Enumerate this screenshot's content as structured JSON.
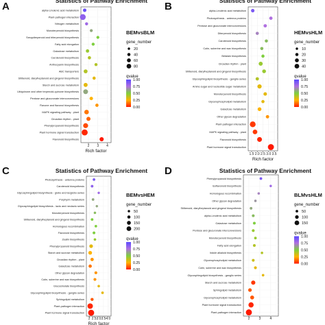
{
  "chart_data": [
    {
      "type": "scatter",
      "panel_letter": "A",
      "title": "Statistics of Pathway Enrichment",
      "comparison": "BEMvsBLM",
      "xlabel": "Rich factor",
      "xticks": [
        "2",
        "3",
        "4"
      ],
      "xlim": [
        1.2,
        4.4
      ],
      "legend_size_title": "gene_number",
      "legend_sizes": [
        "20",
        "40",
        "60",
        "80"
      ],
      "legend_color_title": "qvalue",
      "legend_color_ticks": [
        "1.00",
        "0.75",
        "0.50",
        "0.25",
        "0.00"
      ],
      "pathways": [
        "alpha-Linolenic acid metabolism",
        "Plant-pathogen interaction",
        "Nitrogen metabolism",
        "Monoterpenoid biosynthesis",
        "Sesquiterpenoid and triterpenoid biosynthesis",
        "Fatty acid elongation",
        "Galactose metabolism",
        "Carotenoid biosynthesis",
        "Anthocyanin biosynthesis",
        "ABC transporters",
        "Stilbenoid, diarylheptanoid and gingerol biosynthesis",
        "Starch and sucrose metabolism",
        "Ubiquinone and other terpenoid-quinone biosynthesis",
        "Pentose and glucuronate interconversions",
        "Flavone and flavonol biosynthesis",
        "MAPK signaling pathway - plant",
        "Circadian rhythm - plant",
        "Phenylpropanoid biosynthesis",
        "Plant hormone signal transduction",
        "Flavonoid biosynthesis"
      ],
      "points": [
        {
          "x": 1.6,
          "size": 10,
          "q": 0.95
        },
        {
          "x": 1.4,
          "size": 55,
          "q": 0.85
        },
        {
          "x": 1.8,
          "size": 6,
          "q": 0.8
        },
        {
          "x": 2.3,
          "size": 5,
          "q": 0.6
        },
        {
          "x": 3.0,
          "size": 5,
          "q": 0.5
        },
        {
          "x": 2.5,
          "size": 6,
          "q": 0.5
        },
        {
          "x": 1.9,
          "size": 9,
          "q": 0.45
        },
        {
          "x": 2.1,
          "size": 8,
          "q": 0.4
        },
        {
          "x": 2.8,
          "size": 6,
          "q": 0.4
        },
        {
          "x": 1.7,
          "size": 16,
          "q": 0.4
        },
        {
          "x": 2.6,
          "size": 7,
          "q": 0.3
        },
        {
          "x": 1.7,
          "size": 18,
          "q": 0.3
        },
        {
          "x": 1.7,
          "size": 30,
          "q": 0.6
        },
        {
          "x": 2.3,
          "size": 10,
          "q": 0.25
        },
        {
          "x": 2.9,
          "size": 8,
          "q": 0.2
        },
        {
          "x": 1.8,
          "size": 26,
          "q": 0.15
        },
        {
          "x": 2.0,
          "size": 18,
          "q": 0.12
        },
        {
          "x": 1.7,
          "size": 34,
          "q": 0.08
        },
        {
          "x": 1.6,
          "size": 60,
          "q": 0.02
        },
        {
          "x": 3.4,
          "size": 20,
          "q": 0.0
        }
      ]
    },
    {
      "type": "scatter",
      "panel_letter": "B",
      "title": "Statistics of Pathway Enrichment",
      "comparison": "HEMvsHLM",
      "xlabel": "Rich factor",
      "xticks": [
        "1.5",
        "2.0",
        "2.5",
        "3.0",
        "3.5"
      ],
      "xlim": [
        1.2,
        3.8
      ],
      "legend_size_title": "gene_number",
      "legend_sizes": [
        "10",
        "20",
        "30",
        "40"
      ],
      "legend_color_title": "qvalue",
      "legend_color_ticks": [
        "1.00",
        "0.75",
        "0.50",
        "0.25",
        "0.00"
      ],
      "pathways": [
        "alpha-Linolenic acid metabolism",
        "Photosynthesis - antenna proteins",
        "Pentose and glucuronate interconversions",
        "Diterpenoid biosynthesis",
        "Carotenoid biosynthesis",
        "Cutin, suberine and wax biosynthesis",
        "Betalain biosynthesis",
        "Circadian rhythm - plant",
        "Stilbenoid, diarylheptanoid and gingerol biosynthesis",
        "Glycosphingolipid biosynthesis - ganglio series",
        "Amino sugar and nucleotide sugar metabolism",
        "Monoterpenoid biosynthesis",
        "Glycerophospholipid metabolism",
        "Galactose metabolism",
        "Other glycan degradation",
        "Plant-pathogen interaction",
        "MAPK signaling pathway - plant",
        "Flavonoid biosynthesis",
        "Plant hormone signal transduction"
      ],
      "points": [
        {
          "x": 1.6,
          "size": 6,
          "q": 0.9
        },
        {
          "x": 3.2,
          "size": 5,
          "q": 0.75
        },
        {
          "x": 2.7,
          "size": 5,
          "q": 0.75
        },
        {
          "x": 2.0,
          "size": 4,
          "q": 0.7
        },
        {
          "x": 2.8,
          "size": 4,
          "q": 0.55
        },
        {
          "x": 2.4,
          "size": 4,
          "q": 0.55
        },
        {
          "x": 2.5,
          "size": 4,
          "q": 0.5
        },
        {
          "x": 2.3,
          "size": 10,
          "q": 0.45
        },
        {
          "x": 2.6,
          "size": 8,
          "q": 0.45
        },
        {
          "x": 2.0,
          "size": 5,
          "q": 0.4
        },
        {
          "x": 2.2,
          "size": 12,
          "q": 0.3
        },
        {
          "x": 2.7,
          "size": 6,
          "q": 0.3
        },
        {
          "x": 2.5,
          "size": 4,
          "q": 0.3
        },
        {
          "x": 2.2,
          "size": 8,
          "q": 0.25
        },
        {
          "x": 2.9,
          "size": 5,
          "q": 0.2
        },
        {
          "x": 1.6,
          "size": 30,
          "q": 0.05
        },
        {
          "x": 1.8,
          "size": 16,
          "q": 0.05
        },
        {
          "x": 2.2,
          "size": 18,
          "q": 0.02
        },
        {
          "x": 3.2,
          "size": 34,
          "q": 0.0
        }
      ]
    },
    {
      "type": "scatter",
      "panel_letter": "C",
      "title": "Statistics of Pathway Enrichment",
      "comparison": "BEMvsHEM",
      "xlabel": "Rich factor",
      "xticks": [
        "2",
        "2.5",
        "3.0",
        "3.5",
        "4.0"
      ],
      "xlim": [
        1.7,
        4.3
      ],
      "legend_size_title": "gene_number",
      "legend_sizes": [
        "50",
        "100",
        "150",
        "200"
      ],
      "legend_color_title": "qvalue",
      "legend_color_ticks": [
        "1.00",
        "0.75",
        "0.50",
        "0.25",
        "0.00"
      ],
      "pathways": [
        "Photosynthesis - antenna proteins",
        "Carotenoid biosynthesis",
        "Glycosphingolipid biosynthesis - globo and isoglobo series",
        "Porphyrin metabolism",
        "Glycosphingolipid biosynthesis - lacto and neolacto series",
        "Monoterpenoid biosynthesis",
        "Stilbenoid, diarylheptanoid and gingerol biosynthesis",
        "Homologous recombination",
        "Flavonoid biosynthesis",
        "Zeatin biosynthesis",
        "Phenylpropanoid biosynthesis",
        "Starch and sucrose metabolism",
        "Circadian rhythm - plant",
        "Galactose metabolism",
        "Other glycan degradation",
        "Cutin, suberine and wax biosynthesis",
        "Glucosinolate biosynthesis",
        "Glycosphingolipid biosynthesis - ganglio series",
        "Sphingolipid metabolism",
        "Plant-pathogen interaction",
        "Plant hormone signal transduction"
      ],
      "points": [
        {
          "x": 2.5,
          "size": 10,
          "q": 0.9
        },
        {
          "x": 2.3,
          "size": 10,
          "q": 0.85
        },
        {
          "x": 3.0,
          "size": 5,
          "q": 0.8
        },
        {
          "x": 2.4,
          "size": 8,
          "q": 0.6
        },
        {
          "x": 2.8,
          "size": 5,
          "q": 0.6
        },
        {
          "x": 2.6,
          "size": 6,
          "q": 0.55
        },
        {
          "x": 2.3,
          "size": 10,
          "q": 0.5
        },
        {
          "x": 2.7,
          "size": 8,
          "q": 0.5
        },
        {
          "x": 2.5,
          "size": 12,
          "q": 0.5
        },
        {
          "x": 2.6,
          "size": 8,
          "q": 0.45
        },
        {
          "x": 2.2,
          "size": 40,
          "q": 0.3
        },
        {
          "x": 2.1,
          "size": 45,
          "q": 0.25
        },
        {
          "x": 2.3,
          "size": 30,
          "q": 0.2
        },
        {
          "x": 2.1,
          "size": 28,
          "q": 0.15
        },
        {
          "x": 2.7,
          "size": 14,
          "q": 0.2
        },
        {
          "x": 2.6,
          "size": 16,
          "q": 0.2
        },
        {
          "x": 3.0,
          "size": 8,
          "q": 0.3
        },
        {
          "x": 3.4,
          "size": 10,
          "q": 0.3
        },
        {
          "x": 2.3,
          "size": 20,
          "q": 0.1
        },
        {
          "x": 2.1,
          "size": 150,
          "q": 0.02
        },
        {
          "x": 2.2,
          "size": 200,
          "q": 0.0
        }
      ]
    },
    {
      "type": "scatter",
      "panel_letter": "D",
      "title": "Statistics of Pathway Enrichment",
      "comparison": "BLMvsHLM",
      "xlabel": "",
      "xticks": [
        "2",
        "3",
        "4"
      ],
      "xlim": [
        1.5,
        4.7
      ],
      "legend_size_title": "gene_number",
      "legend_sizes": [
        "50",
        "100",
        "150"
      ],
      "legend_color_title": "qvalue",
      "legend_color_ticks": [
        "1.00",
        "0.75",
        "0.50",
        "0.25",
        "0.00"
      ],
      "pathways": [
        "Phenylpropanoid biosynthesis",
        "Isoflavonoid biosynthesis",
        "Homologous recombination",
        "Other glycan degradation",
        "Stilbenoid, diarylheptanoid and gingerol biosynthesis",
        "alpha-Linolenic acid metabolism",
        "Galactose metabolism",
        "Pentose and glucuronate interconversions",
        "Monoterpenoid biosynthesis",
        "Fatty acid elongation",
        "Indole alkaloid biosynthesis",
        "Glycerophospholipid metabolism",
        "Cutin, suberine and wax biosynthesis",
        "Glycosphingolipid biosynthesis - ganglio series",
        "Starch and sucrose metabolism",
        "Sphingolipid metabolism",
        "Glycerophospholipid metabolism",
        "Plant hormone signal transduction",
        "Plant-pathogen interaction"
      ],
      "points": [
        {
          "x": 3.1,
          "size": 8,
          "q": 0.9
        },
        {
          "x": 4.0,
          "size": 4,
          "q": 0.8
        },
        {
          "x": 2.9,
          "size": 5,
          "q": 0.7
        },
        {
          "x": 2.6,
          "size": 5,
          "q": 0.65
        },
        {
          "x": 2.2,
          "size": 8,
          "q": 0.6
        },
        {
          "x": 2.4,
          "size": 10,
          "q": 0.55
        },
        {
          "x": 2.5,
          "size": 10,
          "q": 0.5
        },
        {
          "x": 2.4,
          "size": 12,
          "q": 0.45
        },
        {
          "x": 2.6,
          "size": 8,
          "q": 0.45
        },
        {
          "x": 2.5,
          "size": 10,
          "q": 0.4
        },
        {
          "x": 3.2,
          "size": 5,
          "q": 0.4
        },
        {
          "x": 2.4,
          "size": 10,
          "q": 0.35
        },
        {
          "x": 2.6,
          "size": 12,
          "q": 0.3
        },
        {
          "x": 3.3,
          "size": 6,
          "q": 0.3
        },
        {
          "x": 2.4,
          "size": 50,
          "q": 0.05
        },
        {
          "x": 2.1,
          "size": 30,
          "q": 0.1
        },
        {
          "x": 2.3,
          "size": 40,
          "q": 0.1
        },
        {
          "x": 2.2,
          "size": 100,
          "q": 0.02
        },
        {
          "x": 2.0,
          "size": 150,
          "q": 0.0
        }
      ]
    }
  ]
}
